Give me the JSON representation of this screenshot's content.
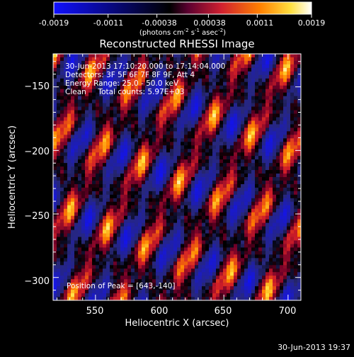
{
  "colorbar": {
    "tick_labels": [
      "-0.0019",
      "-0.0011",
      "-0.00038",
      "0.00038",
      "0.0011",
      "0.0019"
    ],
    "tick_values": [
      -0.0019,
      -0.0011,
      -0.00038,
      0.00038,
      0.0011,
      0.0019
    ],
    "range": [
      -0.0019,
      0.0019
    ],
    "unit_base": "(photons cm",
    "unit_exp1": "-2",
    "unit_mid": " s",
    "unit_exp2": "-1",
    "unit_tail": " asec",
    "unit_exp3": "-2",
    "unit_close": ")",
    "colormap": "blue-black-red-yellow-white"
  },
  "chart_data": {
    "type": "heatmap",
    "title": "Reconstructed RHESSI Image",
    "xlabel": "Heliocentric X (arcsec)",
    "ylabel": "Heliocentric Y (arcsec)",
    "xlim": [
      517,
      710
    ],
    "ylim": [
      -318,
      -124
    ],
    "x_ticks": [
      550,
      600,
      650,
      700
    ],
    "y_ticks": [
      -150,
      -200,
      -250,
      -300
    ],
    "x_tick_labels": [
      "550",
      "600",
      "650",
      "700"
    ],
    "y_tick_labels": [
      "−150",
      "−200",
      "−250",
      "−300"
    ],
    "annotations": {
      "time": "30-Jun-2013 17:10:20.000 to 17:14:04.000",
      "detectors": "Detectors: 3F 5F 6F 7F 8F 9F, Att 4",
      "energy": "Energy Range: 25.0 - 50.0 keV",
      "clean_counts": "Clean     Total counts: 5.97E+03",
      "peak": "Position of Peak = [643,-140]"
    },
    "peak": [
      643,
      -140
    ],
    "data_range": [
      -0.0019,
      0.0019
    ]
  },
  "footer": {
    "timestamp": "30-Jun-2013 19:37"
  }
}
